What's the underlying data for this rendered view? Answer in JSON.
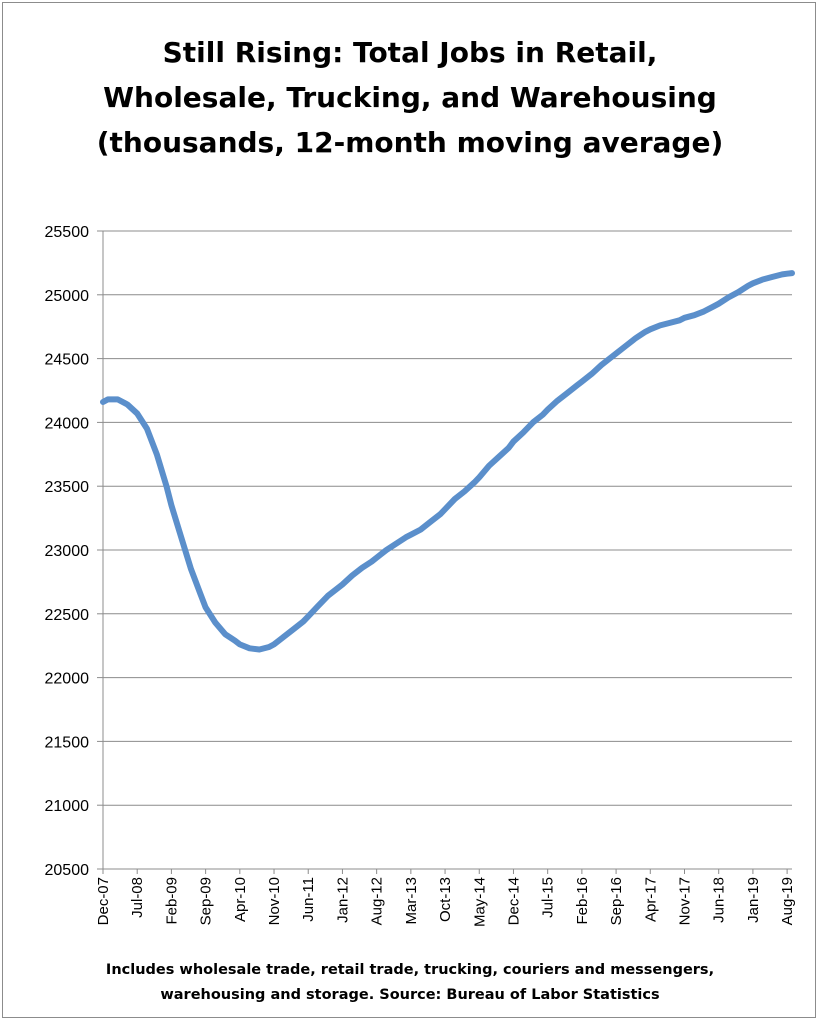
{
  "chart_data": {
    "type": "line",
    "title": "Still Rising: Total Jobs in Retail,\nWholesale, Trucking, and Warehousing\n(thousands, 12-month moving average)",
    "footnote": "Includes wholesale trade, retail trade, trucking, couriers and messengers,\nwarehousing and storage. Source: Bureau of Labor Statistics",
    "xlabel": "",
    "ylabel": "",
    "ylim": [
      20500,
      25500
    ],
    "yticks": [
      20500,
      21000,
      21500,
      22000,
      22500,
      23000,
      23500,
      24000,
      24500,
      25000,
      25500
    ],
    "grid": true,
    "legend": "none",
    "line_color": "#5b8fcb",
    "x_tick_labels": [
      "Dec-07",
      "Jul-08",
      "Feb-09",
      "Sep-09",
      "Apr-10",
      "Nov-10",
      "Jun-11",
      "Jan-12",
      "Aug-12",
      "Mar-13",
      "Oct-13",
      "May-14",
      "Dec-14",
      "Jul-15",
      "Feb-16",
      "Sep-16",
      "Apr-17",
      "Nov-17",
      "Jun-18",
      "Jan-19",
      "Aug-19"
    ],
    "series": [
      {
        "points": [
          [
            "Dec-07",
            24160
          ],
          [
            "Jan-08",
            24180
          ],
          [
            "Mar-08",
            24180
          ],
          [
            "May-08",
            24140
          ],
          [
            "Jul-08",
            24070
          ],
          [
            "Sep-08",
            23950
          ],
          [
            "Nov-08",
            23750
          ],
          [
            "Jan-09",
            23500
          ],
          [
            "Feb-09",
            23350
          ],
          [
            "Apr-09",
            23100
          ],
          [
            "Jun-09",
            22850
          ],
          [
            "Aug-09",
            22650
          ],
          [
            "Sep-09",
            22550
          ],
          [
            "Nov-09",
            22430
          ],
          [
            "Jan-10",
            22340
          ],
          [
            "Mar-10",
            22290
          ],
          [
            "Apr-10",
            22260
          ],
          [
            "Jun-10",
            22230
          ],
          [
            "Aug-10",
            22220
          ],
          [
            "Oct-10",
            22240
          ],
          [
            "Nov-10",
            22260
          ],
          [
            "Jan-11",
            22320
          ],
          [
            "Mar-11",
            22380
          ],
          [
            "May-11",
            22440
          ],
          [
            "Jun-11",
            22480
          ],
          [
            "Aug-11",
            22560
          ],
          [
            "Oct-11",
            22640
          ],
          [
            "Dec-11",
            22700
          ],
          [
            "Jan-12",
            22730
          ],
          [
            "Mar-12",
            22800
          ],
          [
            "May-12",
            22860
          ],
          [
            "Jul-12",
            22910
          ],
          [
            "Aug-12",
            22940
          ],
          [
            "Oct-12",
            23000
          ],
          [
            "Dec-12",
            23050
          ],
          [
            "Feb-13",
            23100
          ],
          [
            "Mar-13",
            23120
          ],
          [
            "May-13",
            23160
          ],
          [
            "Jul-13",
            23220
          ],
          [
            "Sep-13",
            23280
          ],
          [
            "Oct-13",
            23320
          ],
          [
            "Dec-13",
            23400
          ],
          [
            "Feb-14",
            23460
          ],
          [
            "Apr-14",
            23530
          ],
          [
            "May-14",
            23570
          ],
          [
            "Jul-14",
            23660
          ],
          [
            "Sep-14",
            23730
          ],
          [
            "Nov-14",
            23800
          ],
          [
            "Dec-14",
            23850
          ],
          [
            "Feb-15",
            23920
          ],
          [
            "Apr-15",
            24000
          ],
          [
            "Jun-15",
            24060
          ],
          [
            "Jul-15",
            24100
          ],
          [
            "Sep-15",
            24170
          ],
          [
            "Nov-15",
            24230
          ],
          [
            "Jan-16",
            24290
          ],
          [
            "Feb-16",
            24320
          ],
          [
            "Apr-16",
            24380
          ],
          [
            "Jun-16",
            24450
          ],
          [
            "Aug-16",
            24510
          ],
          [
            "Sep-16",
            24540
          ],
          [
            "Nov-16",
            24600
          ],
          [
            "Jan-17",
            24660
          ],
          [
            "Mar-17",
            24710
          ],
          [
            "Apr-17",
            24730
          ],
          [
            "Jun-17",
            24760
          ],
          [
            "Aug-17",
            24780
          ],
          [
            "Oct-17",
            24800
          ],
          [
            "Nov-17",
            24820
          ],
          [
            "Jan-18",
            24840
          ],
          [
            "Mar-18",
            24870
          ],
          [
            "May-18",
            24910
          ],
          [
            "Jun-18",
            24930
          ],
          [
            "Aug-18",
            24980
          ],
          [
            "Oct-18",
            25020
          ],
          [
            "Dec-18",
            25070
          ],
          [
            "Jan-19",
            25090
          ],
          [
            "Mar-19",
            25120
          ],
          [
            "May-19",
            25140
          ],
          [
            "Jul-19",
            25160
          ],
          [
            "Aug-19",
            25165
          ],
          [
            "Sep-19",
            25170
          ]
        ]
      }
    ]
  }
}
